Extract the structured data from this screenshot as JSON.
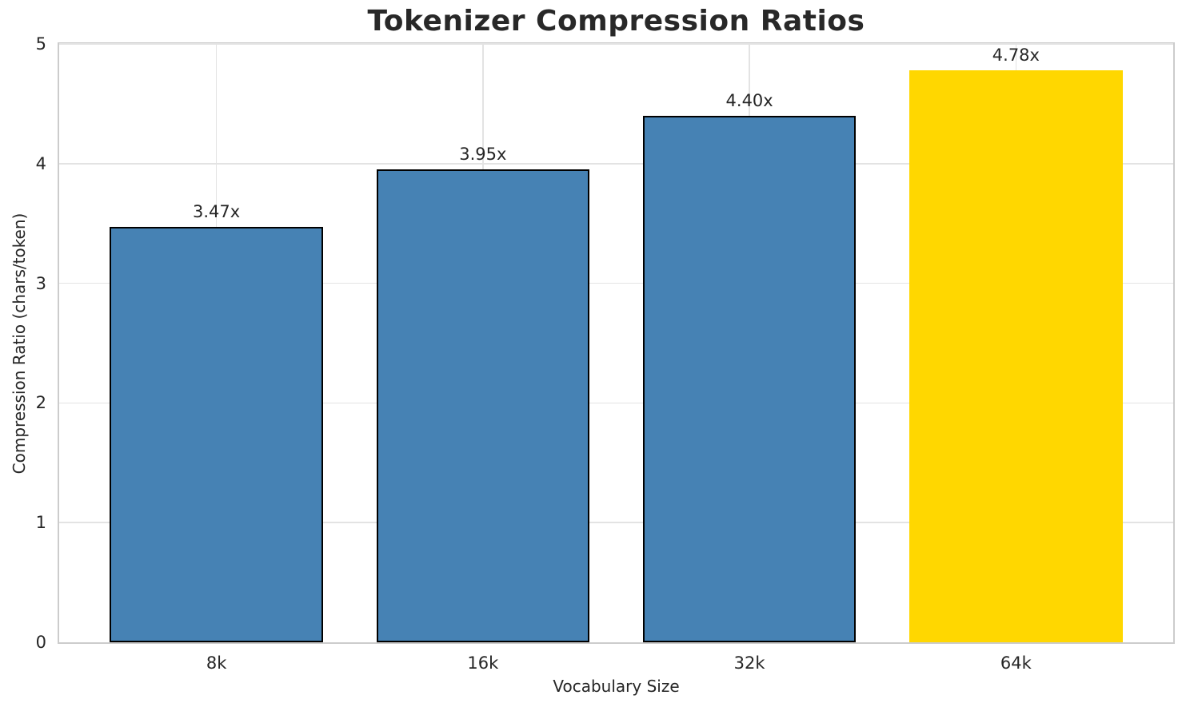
{
  "chart_data": {
    "type": "bar",
    "title": "Tokenizer Compression Ratios",
    "xlabel": "Vocabulary Size",
    "ylabel": "Compression Ratio (chars/token)",
    "categories": [
      "8k",
      "16k",
      "32k",
      "64k"
    ],
    "values": [
      3.47,
      3.95,
      4.4,
      4.78
    ],
    "bar_labels": [
      "3.47x",
      "3.95x",
      "4.40x",
      "4.78x"
    ],
    "bar_colors": [
      "#4682B4",
      "#4682B4",
      "#4682B4",
      "#FFD700"
    ],
    "bar_edge_colors": [
      "#000000",
      "#000000",
      "#000000",
      "#FFD700"
    ],
    "highlight_index": 3,
    "ylim": [
      0,
      5
    ],
    "yticks": [
      0,
      1,
      2,
      3,
      4,
      5
    ],
    "bar_width_data_units": 0.8,
    "x_margin_fraction": 0.05,
    "grid": "both",
    "legend": "none"
  },
  "style": {
    "background": "#ffffff",
    "grid_color": "#e3e3e3",
    "spine_color": "#cccccc",
    "text_color": "#262626",
    "title_color": "#282828",
    "accent_blue": "#4682B4",
    "accent_gold": "#FFD700"
  }
}
